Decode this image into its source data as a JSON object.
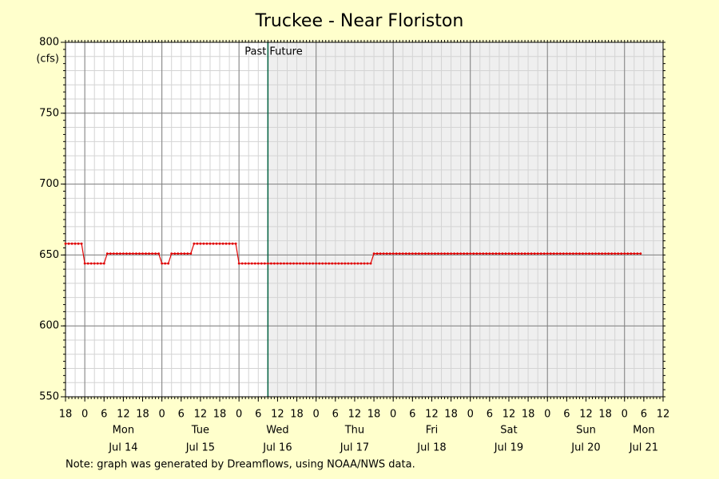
{
  "chart_data": {
    "type": "line",
    "title": "Truckee - Near Floriston",
    "y_label": "(cfs)",
    "note": "Note: graph was generated by Dreamflows, using NOAA/NWS data.",
    "past_label": "Past",
    "future_label": "Future",
    "now": 57,
    "xlim": [
      -6,
      180
    ],
    "ylim": [
      550,
      800
    ],
    "yticks": [
      550,
      600,
      650,
      700,
      750,
      800
    ],
    "xticks": [
      {
        "value": -6,
        "label": "18"
      },
      0,
      6,
      12,
      18,
      {
        "value": 24,
        "label": "0"
      },
      {
        "value": 30,
        "label": "6"
      },
      {
        "value": 36,
        "label": "12"
      },
      {
        "value": 42,
        "label": "18"
      },
      {
        "value": 48,
        "label": "0"
      },
      {
        "value": 54,
        "label": "6"
      },
      {
        "value": 60,
        "label": "12"
      },
      {
        "value": 66,
        "label": "18"
      },
      {
        "value": 72,
        "label": "0"
      },
      {
        "value": 78,
        "label": "6"
      },
      {
        "value": 84,
        "label": "12"
      },
      {
        "value": 90,
        "label": "18"
      },
      {
        "value": 96,
        "label": "0"
      },
      {
        "value": 102,
        "label": "6"
      },
      {
        "value": 108,
        "label": "12"
      },
      {
        "value": 114,
        "label": "18"
      },
      {
        "value": 120,
        "label": "0"
      },
      {
        "value": 126,
        "label": "6"
      },
      {
        "value": 132,
        "label": "12"
      },
      {
        "value": 138,
        "label": "18"
      },
      {
        "value": 144,
        "label": "0"
      },
      {
        "value": 150,
        "label": "6"
      },
      {
        "value": 156,
        "label": "12"
      },
      {
        "value": 162,
        "label": "18"
      },
      {
        "value": 168,
        "label": "0"
      },
      {
        "value": 174,
        "label": "6"
      },
      {
        "value": 180,
        "label": "12"
      }
    ],
    "day_labels": [
      {
        "value": 12,
        "weekday": "Mon",
        "date": "Jul 14"
      },
      {
        "value": 36,
        "weekday": "Tue",
        "date": "Jul 15"
      },
      {
        "value": 60,
        "weekday": "Wed",
        "date": "Jul 16"
      },
      {
        "value": 84,
        "weekday": "Thu",
        "date": "Jul 17"
      },
      {
        "value": 108,
        "weekday": "Fri",
        "date": "Jul 18"
      },
      {
        "value": 132,
        "weekday": "Sat",
        "date": "Jul 19"
      },
      {
        "value": 156,
        "weekday": "Sun",
        "date": "Jul 20"
      },
      {
        "value": 174,
        "weekday": "Mon",
        "date": "Jul 21"
      }
    ],
    "x_minor_grid": 3,
    "y_minor_grid": 10,
    "grid": true,
    "color": "#e00000",
    "text_color": "#e00000",
    "x": [
      -6,
      -5,
      -4,
      -3,
      -2,
      -1,
      0,
      1,
      2,
      3,
      4,
      5,
      6,
      7,
      8,
      9,
      10,
      11,
      12,
      13,
      14,
      15,
      16,
      17,
      18,
      19,
      20,
      21,
      22,
      23,
      24,
      25,
      26,
      27,
      28,
      29,
      30,
      31,
      32,
      33,
      34,
      35,
      36,
      37,
      38,
      39,
      40,
      41,
      42,
      43,
      44,
      45,
      46,
      47,
      48,
      49,
      50,
      51,
      52,
      53,
      54,
      55,
      56,
      57,
      58,
      59,
      60,
      61,
      62,
      63,
      64,
      65,
      66,
      67,
      68,
      69,
      70,
      71,
      72,
      73,
      74,
      75,
      76,
      77,
      78,
      79,
      80,
      81,
      82,
      83,
      84,
      85,
      86,
      87,
      88,
      89,
      90,
      91,
      92,
      93,
      94,
      95,
      96,
      97,
      98,
      99,
      100,
      101,
      102,
      103,
      104,
      105,
      106,
      107,
      108,
      109,
      110,
      111,
      112,
      113,
      114,
      115,
      116,
      117,
      118,
      119,
      120,
      121,
      122,
      123,
      124,
      125,
      126,
      127,
      128,
      129,
      130,
      131,
      132,
      133,
      134,
      135,
      136,
      137,
      138,
      139,
      140,
      141,
      142,
      143,
      144,
      145,
      146,
      147,
      148,
      149,
      150,
      151,
      152,
      153,
      154,
      155,
      156,
      157,
      158,
      159,
      160,
      161,
      162,
      163,
      164,
      165,
      166,
      167,
      168,
      169,
      170,
      171,
      172,
      173
    ],
    "values": [
      658,
      658,
      658,
      658,
      658,
      658,
      644,
      644,
      644,
      644,
      644,
      644,
      644,
      651,
      651,
      651,
      651,
      651,
      651,
      651,
      651,
      651,
      651,
      651,
      651,
      651,
      651,
      651,
      651,
      651,
      644,
      644,
      644,
      651,
      651,
      651,
      651,
      651,
      651,
      651,
      658,
      658,
      658,
      658,
      658,
      658,
      658,
      658,
      658,
      658,
      658,
      658,
      658,
      658,
      644,
      644,
      644,
      644,
      644,
      644,
      644,
      644,
      644,
      644,
      644,
      644,
      644,
      644,
      644,
      644,
      644,
      644,
      644,
      644,
      644,
      644,
      644,
      644,
      644,
      644,
      644,
      644,
      644,
      644,
      644,
      644,
      644,
      644,
      644,
      644,
      644,
      644,
      644,
      644,
      644,
      644,
      651,
      651,
      651,
      651,
      651,
      651,
      651,
      651,
      651,
      651,
      651,
      651,
      651,
      651,
      651,
      651,
      651,
      651,
      651,
      651,
      651,
      651,
      651,
      651,
      651,
      651,
      651,
      651,
      651,
      651,
      651,
      651,
      651,
      651,
      651,
      651,
      651,
      651,
      651,
      651,
      651,
      651,
      651,
      651,
      651,
      651,
      651,
      651,
      651,
      651,
      651,
      651,
      651,
      651,
      651,
      651,
      651,
      651,
      651,
      651,
      651,
      651,
      651,
      651,
      651,
      651,
      651,
      651,
      651,
      651,
      651,
      651,
      651,
      651,
      651,
      651,
      651,
      651,
      651,
      651,
      651,
      651,
      651,
      651
    ]
  }
}
